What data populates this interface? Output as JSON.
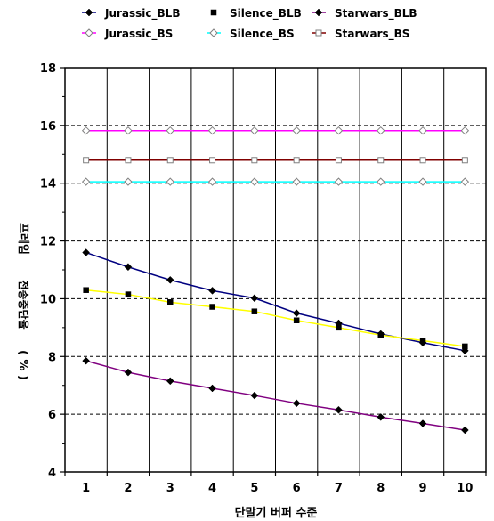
{
  "chart_data": {
    "type": "line",
    "xlabel": "단말기 버퍼 수준",
    "ylabel_main": "프레임",
    "ylabel_sub": "전송중단율",
    "ylabel_unit": "( % )",
    "x": [
      1,
      2,
      3,
      4,
      5,
      6,
      7,
      8,
      9,
      10
    ],
    "ylim": [
      4,
      18
    ],
    "yticks": [
      4,
      6,
      8,
      10,
      12,
      14,
      16,
      18
    ],
    "grid": true,
    "legend_position": "top",
    "series": [
      {
        "name": "Jurassic_BLB",
        "line_color": "#000080",
        "marker_color": "#000000",
        "marker": "diamond-filled",
        "values": [
          11.6,
          11.1,
          10.65,
          10.28,
          10.02,
          9.5,
          9.15,
          8.78,
          8.48,
          8.2
        ]
      },
      {
        "name": "Silence_BLB",
        "line_color": "#ffff00",
        "marker_color": "#000000",
        "marker": "square-filled",
        "values": [
          10.3,
          10.15,
          9.88,
          9.72,
          9.56,
          9.25,
          9.0,
          8.74,
          8.55,
          8.35
        ]
      },
      {
        "name": "Starwars_BLB",
        "line_color": "#800080",
        "marker_color": "#000000",
        "marker": "diamond-filled",
        "values": [
          7.85,
          7.45,
          7.15,
          6.9,
          6.65,
          6.38,
          6.15,
          5.9,
          5.68,
          5.45
        ]
      },
      {
        "name": "Jurassic_BS",
        "line_color": "#ff00ff",
        "marker_color": "#808080",
        "marker": "diamond-open",
        "values": [
          15.82,
          15.82,
          15.82,
          15.82,
          15.82,
          15.82,
          15.82,
          15.82,
          15.82,
          15.82
        ]
      },
      {
        "name": "Silence_BS",
        "line_color": "#00ffff",
        "marker_color": "#808080",
        "marker": "diamond-open",
        "values": [
          14.05,
          14.05,
          14.05,
          14.05,
          14.05,
          14.05,
          14.05,
          14.05,
          14.05,
          14.05
        ]
      },
      {
        "name": "Starwars_BS",
        "line_color": "#800000",
        "marker_color": "#808080",
        "marker": "square-open",
        "values": [
          14.8,
          14.8,
          14.8,
          14.8,
          14.8,
          14.8,
          14.8,
          14.8,
          14.8,
          14.8
        ]
      }
    ]
  }
}
